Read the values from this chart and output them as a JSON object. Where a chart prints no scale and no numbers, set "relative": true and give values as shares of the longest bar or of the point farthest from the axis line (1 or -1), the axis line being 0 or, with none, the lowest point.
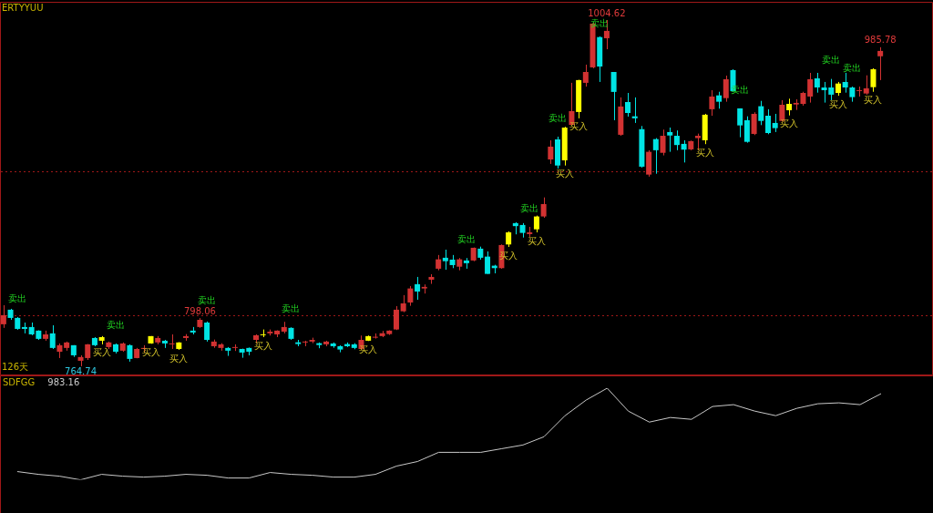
{
  "chart_data": [
    {
      "type": "candlestick",
      "title": "ERTYYUU",
      "categories": [
        null,
        null,
        null,
        null,
        null,
        null,
        null,
        null,
        null,
        null,
        null,
        null,
        null,
        null,
        null,
        null,
        null,
        null,
        null,
        null,
        null,
        null,
        null,
        null,
        null,
        null,
        null,
        null,
        null,
        null,
        null,
        null,
        null,
        null,
        null,
        null,
        null,
        null,
        null,
        null,
        null,
        null,
        null,
        null,
        null,
        null,
        null,
        null,
        null,
        null,
        null,
        null,
        null,
        null,
        null,
        null,
        null,
        null,
        null,
        null,
        null,
        null,
        null,
        null,
        null,
        null,
        null,
        null,
        null,
        null,
        null,
        null,
        null,
        null,
        null,
        null,
        null,
        null,
        null,
        null,
        null,
        null,
        null,
        null,
        null,
        null,
        null,
        null,
        null,
        null,
        null,
        null,
        null,
        null,
        null,
        null,
        null,
        null,
        null,
        null,
        null,
        null,
        null,
        null,
        null,
        null,
        null,
        null,
        null,
        null,
        null,
        null,
        null,
        null,
        null,
        null,
        null,
        null,
        null,
        null,
        null,
        null,
        null,
        null,
        null,
        null
      ],
      "value_labels": [
        null,
        null,
        "卖出",
        null,
        null,
        null,
        null,
        null,
        null,
        null,
        null,
        "764.74",
        null,
        null,
        "买入",
        null,
        "卖出",
        null,
        null,
        null,
        null,
        "买入",
        null,
        null,
        null,
        "买入",
        null,
        null,
        "798.06",
        "卖出",
        null,
        null,
        null,
        null,
        null,
        null,
        null,
        "买入",
        null,
        null,
        null,
        "卖出",
        null,
        null,
        null,
        null,
        null,
        null,
        null,
        null,
        null,
        null,
        "买入",
        null,
        null,
        null,
        null,
        null,
        null,
        null,
        null,
        null,
        null,
        null,
        null,
        null,
        "卖出",
        null,
        null,
        null,
        null,
        null,
        "买入",
        null,
        null,
        "卖出",
        "买入",
        null,
        null,
        "卖出",
        "买入",
        null,
        "买入",
        null,
        null,
        "卖出",
        "1004.62",
        null,
        null,
        null,
        null,
        null,
        null,
        null,
        null,
        null,
        null,
        null,
        null,
        null,
        "买入",
        null,
        null,
        null,
        null,
        "卖出",
        null,
        null,
        null,
        null,
        null,
        null,
        "买入",
        null,
        null,
        null,
        null,
        null,
        "卖出",
        "买入",
        null,
        "卖出",
        null,
        null,
        "买入",
        "985.78"
      ],
      "ohlc": [
        [
          793.8,
          807.0,
          791.3,
          800.1
        ],
        [
          803.9,
          804.5,
          796.9,
          798.2
        ],
        [
          798.2,
          798.8,
          790.0,
          790.6
        ],
        [
          791.9,
          795.0,
          787.5,
          790.6
        ],
        [
          791.9,
          795.0,
          786.2,
          786.8
        ],
        [
          789.4,
          789.6,
          783.0,
          783.7
        ],
        [
          783.7,
          789.4,
          782.4,
          786.8
        ],
        [
          787.5,
          793.1,
          776.7,
          777.4
        ],
        [
          774.8,
          780.5,
          770.4,
          779.3
        ],
        [
          777.4,
          781.8,
          775.5,
          781.2
        ],
        [
          779.3,
          779.3,
          771.2,
          772.3
        ],
        [
          768.5,
          772.3,
          764.74,
          771.1
        ],
        [
          770.4,
          780.1,
          769.1,
          779.9
        ],
        [
          784.3,
          784.9,
          778.6,
          779.3
        ],
        [
          782.4,
          785.6,
          779.9,
          784.9
        ],
        [
          778.0,
          781.8,
          776.7,
          781.2
        ],
        [
          779.9,
          780.5,
          773.6,
          774.8
        ],
        [
          775.5,
          781.2,
          774.8,
          780.5
        ],
        [
          779.3,
          779.9,
          767.9,
          769.8
        ],
        [
          770.4,
          777.4,
          770.2,
          776.7
        ],
        [
          776.7,
          779.3,
          774.2,
          777.4
        ],
        [
          780.5,
          785.6,
          780.3,
          785.6
        ],
        [
          781.2,
          785.6,
          779.9,
          784.3
        ],
        [
          782.4,
          783.0,
          777.4,
          780.5
        ],
        [
          779.9,
          786.8,
          776.7,
          780.5
        ],
        [
          776.7,
          781.4,
          776.1,
          781.2
        ],
        [
          784.3,
          787.0,
          782.4,
          785.6
        ],
        [
          789.4,
          791.9,
          786.8,
          788.1
        ],
        [
          791.9,
          798.06,
          791.3,
          796.9
        ],
        [
          795.0,
          795.7,
          781.8,
          783.0
        ],
        [
          778.6,
          783.2,
          777.5,
          781.8
        ],
        [
          777.4,
          780.7,
          775.5,
          779.9
        ],
        [
          777.4,
          778.0,
          771.9,
          775.5
        ],
        [
          777.4,
          779.9,
          775.3,
          778.0
        ],
        [
          776.7,
          776.9,
          770.6,
          774.2
        ],
        [
          777.4,
          777.7,
          772.3,
          774.8
        ],
        [
          783.0,
          786.8,
          780.5,
          786.2
        ],
        [
          786.2,
          790.2,
          784.9,
          786.8
        ],
        [
          787.5,
          790.2,
          786.0,
          788.7
        ],
        [
          786.8,
          789.6,
          784.9,
          789.4
        ],
        [
          788.7,
          795.5,
          787.5,
          791.9
        ],
        [
          791.3,
          791.7,
          783.0,
          783.7
        ],
        [
          781.3,
          783.0,
          778.6,
          780.1
        ],
        [
          781.2,
          782.4,
          778.6,
          781.8
        ],
        [
          781.8,
          784.5,
          780.7,
          783.0
        ],
        [
          780.7,
          781.2,
          777.2,
          779.4
        ],
        [
          779.9,
          782.4,
          778.6,
          781.8
        ],
        [
          780.5,
          781.2,
          777.5,
          778.6
        ],
        [
          778.6,
          779.2,
          774.4,
          776.3
        ],
        [
          780.1,
          781.2,
          778.0,
          778.6
        ],
        [
          779.9,
          780.7,
          776.5,
          777.4
        ],
        [
          776.7,
          786.0,
          776.1,
          783.0
        ],
        [
          782.4,
          786.0,
          782.2,
          785.6
        ],
        [
          784.5,
          787.5,
          783.9,
          784.9
        ],
        [
          785.6,
          789.2,
          784.9,
          787.6
        ],
        [
          787.0,
          789.6,
          786.4,
          789.4
        ],
        [
          790.2,
          806.4,
          789.8,
          803.9
        ],
        [
          802.8,
          814.0,
          802.2,
          808.3
        ],
        [
          808.9,
          820.3,
          806.6,
          818.6
        ],
        [
          821.6,
          826.6,
          810.8,
          816.5
        ],
        [
          818.6,
          821.4,
          815.1,
          819.7
        ],
        [
          824.7,
          828.5,
          821.8,
          826.6
        ],
        [
          832.3,
          841.8,
          831.2,
          838.8
        ],
        [
          839.9,
          845.5,
          831.6,
          837.5
        ],
        [
          838.6,
          841.8,
          832.7,
          834.8
        ],
        [
          833.7,
          839.7,
          831.2,
          838.8
        ],
        [
          838.0,
          839.7,
          832.3,
          836.1
        ],
        [
          838.0,
          847.0,
          837.5,
          846.8
        ],
        [
          846.2,
          847.6,
          838.6,
          839.9
        ],
        [
          840.7,
          844.3,
          828.7,
          828.7
        ],
        [
          834.4,
          835.0,
          829.1,
          832.7
        ],
        [
          832.7,
          849.1,
          832.3,
          848.7
        ],
        [
          849.1,
          858.2,
          847.4,
          857.5
        ],
        [
          863.9,
          864.5,
          856.1,
          861.8
        ],
        [
          862.6,
          863.9,
          853.9,
          857.1
        ],
        [
          856.3,
          861.3,
          854.4,
          857.5
        ],
        [
          859.6,
          869.1,
          857.5,
          868.5
        ],
        [
          868.5,
          881.7,
          867.6,
          877.1
        ],
        [
          908.0,
          921.3,
          904.9,
          916.9
        ],
        [
          921.9,
          923.8,
          901.7,
          903.8
        ],
        [
          907.4,
          930.6,
          903.8,
          930.1
        ],
        [
          932.0,
          961.1,
          931.4,
          941.5
        ],
        [
          940.9,
          963.2,
          936.5,
          963.0
        ],
        [
          961.1,
          973.7,
          958.5,
          968.6
        ],
        [
          971.8,
          1002.7,
          971.2,
          1002.1
        ],
        [
          992.8,
          993.3,
          961.7,
          972.4
        ],
        [
          992.0,
          1004.62,
          984.4,
          997.1
        ],
        [
          968.6,
          968.6,
          935.2,
          954.8
        ],
        [
          925.1,
          951.0,
          924.4,
          944.7
        ],
        [
          947.8,
          954.1,
          937.7,
          940.2
        ],
        [
          937.9,
          951.0,
          933.3,
          936.5
        ],
        [
          929.0,
          931.2,
          902.4,
          903.0
        ],
        [
          897.5,
          914.4,
          896.1,
          913.3
        ],
        [
          922.1,
          922.8,
          898.1,
          914.4
        ],
        [
          912.6,
          928.7,
          910.8,
          924.4
        ],
        [
          927.0,
          930.1,
          913.3,
          924.6
        ],
        [
          924.4,
          928.1,
          914.4,
          918.0
        ],
        [
          918.8,
          921.3,
          905.9,
          914.8
        ],
        [
          915.0,
          921.1,
          914.4,
          920.7
        ],
        [
          922.8,
          925.9,
          914.4,
          924.4
        ],
        [
          921.3,
          939.6,
          918.6,
          939.0
        ],
        [
          942.8,
          956.0,
          938.3,
          951.6
        ],
        [
          952.4,
          954.9,
          943.2,
          948.0
        ],
        [
          950.5,
          966.1,
          948.0,
          963.6
        ],
        [
          969.9,
          970.5,
          954.9,
          955.4
        ],
        [
          943.4,
          943.4,
          923.4,
          931.6
        ],
        [
          935.2,
          937.9,
          919.6,
          920.2
        ],
        [
          925.7,
          940.7,
          924.9,
          939.6
        ],
        [
          944.9,
          948.6,
          931.8,
          934.7
        ],
        [
          938.3,
          942.8,
          925.5,
          926.3
        ],
        [
          933.3,
          939.6,
          927.0,
          929.7
        ],
        [
          934.7,
          949.1,
          934.3,
          945.9
        ],
        [
          942.1,
          950.1,
          938.5,
          946.5
        ],
        [
          946.1,
          949.7,
          942.3,
          947.2
        ],
        [
          946.5,
          954.9,
          945.3,
          954.1
        ],
        [
          951.6,
          968.0,
          947.4,
          963.6
        ],
        [
          964.2,
          968.0,
          954.3,
          957.9
        ],
        [
          957.9,
          961.7,
          947.4,
          956.0
        ],
        [
          957.9,
          963.8,
          949.1,
          952.9
        ],
        [
          954.1,
          961.7,
          952.2,
          960.6
        ],
        [
          961.7,
          968.0,
          954.3,
          957.9
        ],
        [
          957.9,
          958.5,
          948.0,
          951.2
        ],
        [
          955.4,
          958.5,
          951.6,
          956.0
        ],
        [
          953.7,
          966.3,
          952.9,
          957.3
        ],
        [
          958.1,
          971.2,
          954.9,
          970.5
        ],
        [
          979.5,
          985.78,
          963.0,
          983.2
        ]
      ],
      "colors": [
        "#d23232",
        "#00e4e4",
        "#00e4e4",
        "#00e4e4",
        "#00e4e4",
        "#00e4e4",
        "#d23232",
        "#00e4e4",
        "#d23232",
        "#d23232",
        "#00e4e4",
        "#d23232",
        "#d23232",
        "#00e4e4",
        "#ffff00",
        "#d23232",
        "#00e4e4",
        "#d23232",
        "#00e4e4",
        "#d23232",
        "#d23232",
        "#ffff00",
        "#d23232",
        "#00e4e4",
        "#d23232",
        "#ffff00",
        "#d23232",
        "#00e4e4",
        "#d23232",
        "#00e4e4",
        "#d23232",
        "#d23232",
        "#00e4e4",
        "#d23232",
        "#00e4e4",
        "#00e4e4",
        "#d23232",
        "#ffff00",
        "#d23232",
        "#d23232",
        "#d23232",
        "#00e4e4",
        "#00e4e4",
        "#d23232",
        "#d23232",
        "#00e4e4",
        "#d23232",
        "#00e4e4",
        "#00e4e4",
        "#00e4e4",
        "#00e4e4",
        "#d23232",
        "#ffff00",
        "#d23232",
        "#d23232",
        "#d23232",
        "#d23232",
        "#d23232",
        "#d23232",
        "#00e4e4",
        "#d23232",
        "#d23232",
        "#d23232",
        "#00e4e4",
        "#00e4e4",
        "#d23232",
        "#00e4e4",
        "#d23232",
        "#00e4e4",
        "#00e4e4",
        "#00e4e4",
        "#d23232",
        "#ffff00",
        "#00e4e4",
        "#00e4e4",
        "#d23232",
        "#ffff00",
        "#d23232",
        "#d23232",
        "#00e4e4",
        "#ffff00",
        "#d23232",
        "#ffff00",
        "#d23232",
        "#d23232",
        "#00e4e4",
        "#d23232",
        "#00e4e4",
        "#d23232",
        "#00e4e4",
        "#00e4e4",
        "#00e4e4",
        "#d23232",
        "#00e4e4",
        "#d23232",
        "#00e4e4",
        "#00e4e4",
        "#00e4e4",
        "#d23232",
        "#d23232",
        "#ffff00",
        "#d23232",
        "#00e4e4",
        "#d23232",
        "#00e4e4",
        "#00e4e4",
        "#00e4e4",
        "#d23232",
        "#00e4e4",
        "#00e4e4",
        "#00e4e4",
        "#d23232",
        "#ffff00",
        "#d23232",
        "#d23232",
        "#d23232",
        "#00e4e4",
        "#00e4e4",
        "#00e4e4",
        "#ffff00",
        "#00e4e4",
        "#00e4e4",
        "#d23232",
        "#d23232",
        "#ffff00",
        "#d23232"
      ],
      "ylim": [
        759.0,
        1016.6
      ],
      "yticks": [
        {
          "value": 800,
          "label": null
        },
        {
          "value": 900,
          "label": null
        }
      ],
      "grid": "y",
      "annotations": [
        "126天"
      ]
    },
    {
      "type": "line",
      "title": "SDFGG",
      "subtitle": "983.16",
      "relative": true,
      "marker": "none",
      "categories": [
        null,
        null,
        null,
        null,
        null,
        null,
        null,
        null,
        null,
        null,
        null,
        null,
        null,
        null,
        null,
        null,
        null,
        null,
        null,
        null,
        null,
        null,
        null,
        null,
        null,
        null,
        null,
        null,
        null,
        null,
        null,
        null,
        null,
        null,
        null,
        null,
        null,
        null,
        null,
        null,
        null,
        null
      ],
      "series": [
        {
          "color": "#c8c8c8",
          "values": [
            0.09,
            0.06,
            0.04,
            0,
            0.06,
            0.04,
            0.03,
            0.04,
            0.06,
            0.05,
            0.02,
            0.02,
            0.08,
            0.06,
            0.05,
            0.03,
            0.03,
            0.06,
            0.15,
            0.2,
            0.3,
            0.3,
            0.3,
            0.34,
            0.38,
            0.47,
            0.7,
            0.87,
            1,
            0.75,
            0.63,
            0.68,
            0.66,
            0.8,
            0.82,
            0.75,
            0.7,
            0.78,
            0.83,
            0.84,
            0.82,
            0.94
          ]
        }
      ]
    }
  ]
}
